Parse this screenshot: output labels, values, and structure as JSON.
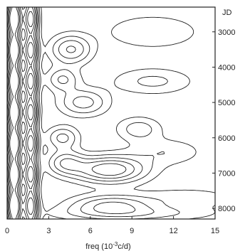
{
  "colors": {
    "ink": "#222222",
    "background": "#ffffff"
  },
  "chart_data": {
    "type": "contour",
    "xlabel_main": "freq (10",
    "xlabel_exp": "-3",
    "xlabel_tail": "c/d)",
    "ylabel": "JD",
    "xlim": [
      0,
      15
    ],
    "ylim": [
      2300,
      8300
    ],
    "y_inverted": true,
    "grid": false,
    "legend": "none",
    "x_ticks": [
      0,
      3,
      6,
      9,
      12,
      15
    ],
    "x_tick_labels": [
      "0",
      "3",
      "6",
      "9",
      "12",
      "15"
    ],
    "y_ticks": [
      3000,
      4000,
      5000,
      6000,
      7000,
      8000
    ],
    "y_tick_labels": [
      "3000",
      "4000",
      "5000",
      "6000",
      "7000",
      "8000"
    ],
    "field": {
      "base": 0.4,
      "ridges": [
        {
          "x": 0.5,
          "w": 0.35,
          "a": 9.0
        },
        {
          "x": 1.7,
          "w": 0.35,
          "a": 6.0
        }
      ],
      "peaks": [
        {
          "x": 4.6,
          "y": 3500,
          "sx": 1.0,
          "sy": 280,
          "a": 2.2
        },
        {
          "x": 4.0,
          "y": 4350,
          "sx": 0.8,
          "sy": 220,
          "a": 1.6
        },
        {
          "x": 5.5,
          "y": 5000,
          "sx": 1.2,
          "sy": 260,
          "a": 1.8
        },
        {
          "x": 4.0,
          "y": 6000,
          "sx": 0.8,
          "sy": 220,
          "a": 1.7
        },
        {
          "x": 4.2,
          "y": 6700,
          "sx": 0.9,
          "sy": 230,
          "a": 1.9
        },
        {
          "x": 7.4,
          "y": 6900,
          "sx": 1.8,
          "sy": 260,
          "a": 3.3
        },
        {
          "x": 7.5,
          "y": 7900,
          "sx": 2.0,
          "sy": 200,
          "a": 2.1
        },
        {
          "x": 9.5,
          "y": 5750,
          "sx": 1.1,
          "sy": 230,
          "a": 1.3
        },
        {
          "x": 10.5,
          "y": 4400,
          "sx": 2.0,
          "sy": 260,
          "a": 1.1
        },
        {
          "x": 11.5,
          "y": 6400,
          "sx": 1.8,
          "sy": 260,
          "a": 0.9
        },
        {
          "x": 10.5,
          "y": 3000,
          "sx": 2.5,
          "sy": 350,
          "a": 0.9
        },
        {
          "x": 13.0,
          "y": 7700,
          "sx": 2.5,
          "sy": 200,
          "a": 0.8
        },
        {
          "x": 9.0,
          "y": 8150,
          "sx": 4.0,
          "sy": 150,
          "a": 1.2
        }
      ],
      "levels": [
        0.85,
        1.35,
        1.9,
        2.5,
        3.1,
        3.8,
        4.6,
        5.5,
        6.5
      ]
    }
  }
}
